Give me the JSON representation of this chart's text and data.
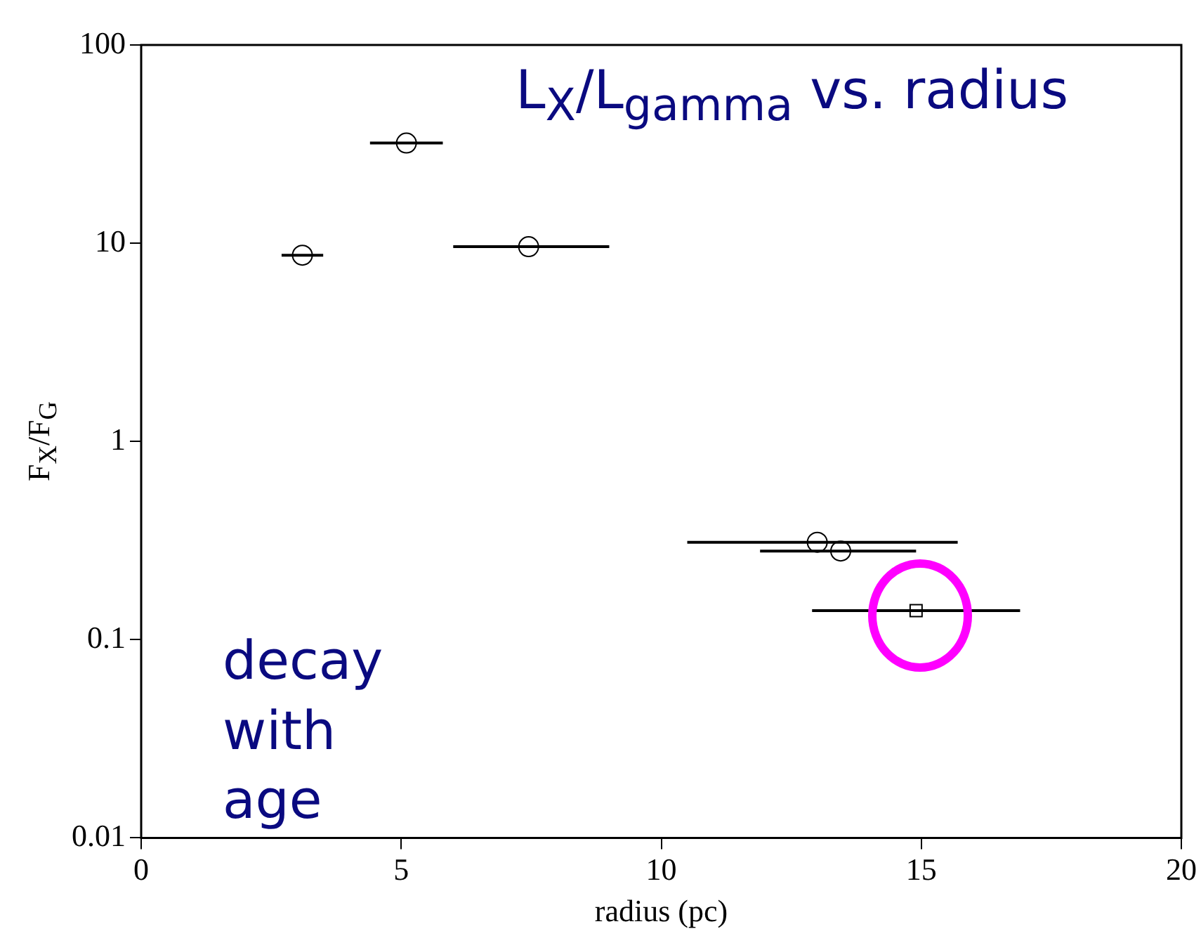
{
  "chart_data": {
    "type": "scatter",
    "xlabel": "radius (pc)",
    "ylabel": "F$_{X}$/F$_{G}$",
    "log": "y",
    "grid": false,
    "legend": false,
    "xlim": [
      0,
      20
    ],
    "xticks": [
      0,
      5,
      10,
      15,
      20
    ],
    "ylim": [
      0.01,
      100
    ],
    "yticks": [
      0.01,
      0.1,
      1,
      10,
      100
    ],
    "annotations": [
      "L$_{X}$/L$_{gamma}$ vs. radius",
      "decay with age"
    ],
    "series": [
      {
        "color": "#000000",
        "marker": "circle",
        "x": [
          3.1,
          5.1,
          7.45,
          13.0,
          13.45
        ],
        "values": [
          8.7,
          32,
          9.6,
          0.31,
          0.28
        ],
        "xerrors": [
          [
            2.7,
            3.5
          ],
          [
            4.4,
            5.8
          ],
          [
            6.0,
            9.0
          ],
          [
            10.5,
            15.7
          ],
          [
            11.9,
            14.9
          ]
        ]
      },
      {
        "color": "#000000",
        "marker": "square",
        "x": [
          14.9
        ],
        "values": [
          0.14
        ],
        "xerrors": [
          [
            12.9,
            16.9
          ]
        ]
      }
    ]
  }
}
